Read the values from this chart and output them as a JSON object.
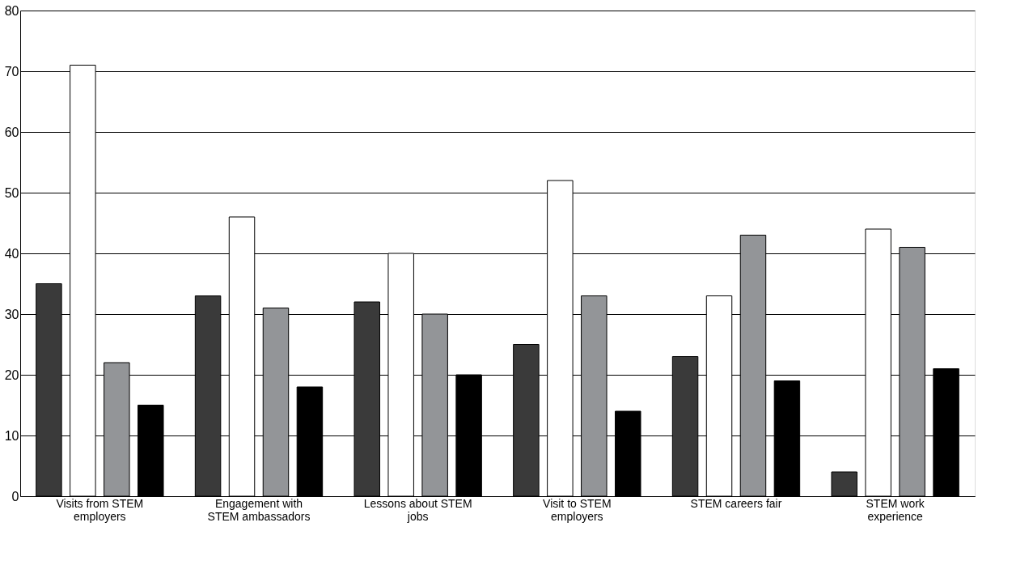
{
  "chart_data": {
    "type": "bar",
    "categories": [
      "Visits from STEM\nemployers",
      "Engagement with\nSTEM ambassadors",
      "Lessons about STEM\njobs",
      "Visit to STEM\nemployers",
      "STEM careers fair",
      "STEM work\nexperience"
    ],
    "series": [
      {
        "color": "#3a3a3a",
        "values": [
          35,
          33,
          32,
          25,
          23,
          4
        ]
      },
      {
        "color": "#ffffff",
        "values": [
          71,
          46,
          40,
          52,
          33,
          44
        ]
      },
      {
        "color": "#939598",
        "values": [
          22,
          31,
          30,
          33,
          43,
          41
        ]
      },
      {
        "color": "#000000",
        "values": [
          15,
          18,
          20,
          14,
          19,
          21
        ]
      }
    ],
    "ylim": [
      0,
      80
    ],
    "yticks": [
      0,
      10,
      20,
      30,
      40,
      50,
      60,
      70,
      80
    ],
    "grid": "y",
    "legend": false
  }
}
